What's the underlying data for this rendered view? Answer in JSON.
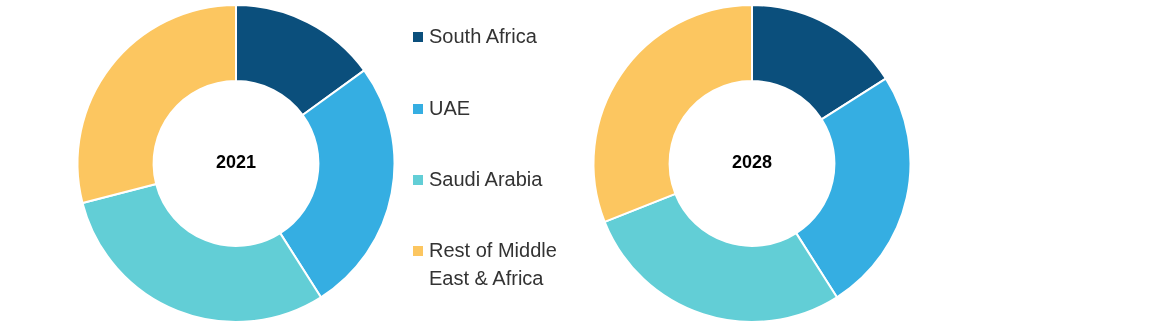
{
  "chart_data": {
    "type": "donut",
    "categories": [
      "South Africa",
      "UAE",
      "Saudi Arabia",
      "Rest of Middle East & Africa"
    ],
    "colors": [
      "#0b4f7c",
      "#35aee2",
      "#62ced6",
      "#fcc660"
    ],
    "legend": "right",
    "series": [
      {
        "name": "2021",
        "values": [
          15,
          26,
          30,
          29
        ]
      },
      {
        "name": "2028",
        "values": [
          16,
          25,
          28,
          31
        ]
      }
    ]
  }
}
